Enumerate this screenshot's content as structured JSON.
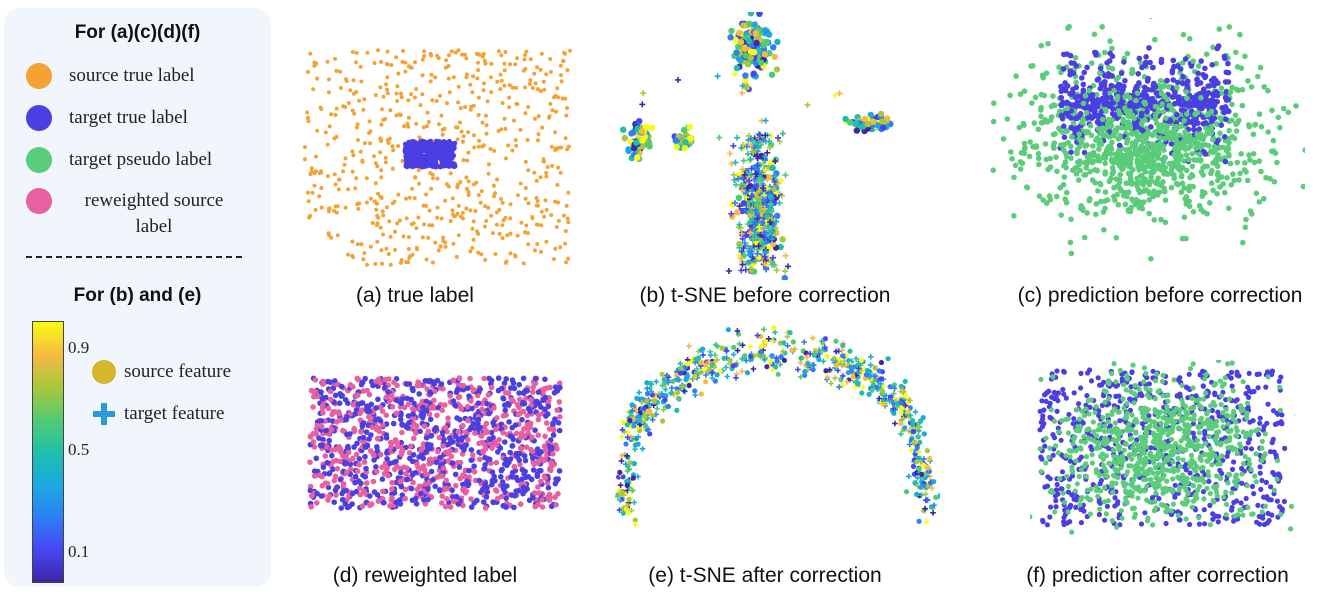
{
  "legend": {
    "title_top": "For (a)(c)(d)(f)",
    "items": [
      {
        "label": "source true label",
        "color": "#f4a234"
      },
      {
        "label": "target true label",
        "color": "#4b3fe2"
      },
      {
        "label": "target pseudo label",
        "color": "#5bcc7a"
      },
      {
        "label": "reweighted source label",
        "color": "#e8609f"
      }
    ],
    "title_bottom": "For (b) and (e)",
    "colorbar": {
      "ticks": [
        "0.9",
        "0.5",
        "0.1"
      ],
      "colormap": "parula"
    },
    "feature_items": [
      {
        "label": "source feature",
        "marker": "circle",
        "color": "#d6b62a"
      },
      {
        "label": "target feature",
        "marker": "plus",
        "color": "#2a9bd8"
      }
    ]
  },
  "captions": {
    "a": "(a) true label",
    "b": "(b) t-SNE before correction",
    "c": "(c) prediction before correction",
    "d": "(d) reweighted label",
    "e": "(e) t-SNE after correction",
    "f": "(f) prediction after correction"
  },
  "chart_data": [
    {
      "type": "scatter",
      "panel": "a",
      "title": "(a) true label",
      "series": [
        {
          "name": "source true label",
          "color": "#f4a234",
          "distribution": "broad uniform spread"
        },
        {
          "name": "target true label",
          "color": "#4b3fe2",
          "distribution": "dense central cluster"
        }
      ]
    },
    {
      "type": "scatter",
      "panel": "b",
      "title": "(b) t-SNE before correction",
      "colormap": "parula",
      "series": [
        {
          "name": "source feature",
          "marker": "circle",
          "distribution": "separate small clusters"
        },
        {
          "name": "target feature",
          "marker": "plus",
          "distribution": "central vertical column"
        }
      ]
    },
    {
      "type": "scatter",
      "panel": "c",
      "title": "(c) prediction before correction",
      "series": [
        {
          "name": "target true label",
          "color": "#4b3fe2",
          "distribution": "dense upper band"
        },
        {
          "name": "target pseudo label",
          "color": "#5bcc7a",
          "distribution": "broad lower spread"
        }
      ]
    },
    {
      "type": "scatter",
      "panel": "d",
      "title": "(d) reweighted label",
      "series": [
        {
          "name": "target true label",
          "color": "#4b3fe2",
          "distribution": "uniform rectangle"
        },
        {
          "name": "reweighted source label",
          "color": "#e8609f",
          "distribution": "uniform rectangle"
        }
      ]
    },
    {
      "type": "scatter",
      "panel": "e",
      "title": "(e) t-SNE after correction",
      "colormap": "parula",
      "series": [
        {
          "name": "source feature",
          "marker": "circle",
          "distribution": "arc shaped manifold"
        },
        {
          "name": "target feature",
          "marker": "plus",
          "distribution": "arc shaped manifold"
        }
      ]
    },
    {
      "type": "scatter",
      "panel": "f",
      "title": "(f) prediction after correction",
      "series": [
        {
          "name": "target true label",
          "color": "#4b3fe2",
          "distribution": "uniform rectangle"
        },
        {
          "name": "target pseudo label",
          "color": "#5bcc7a",
          "distribution": "central gaussian"
        }
      ]
    }
  ]
}
